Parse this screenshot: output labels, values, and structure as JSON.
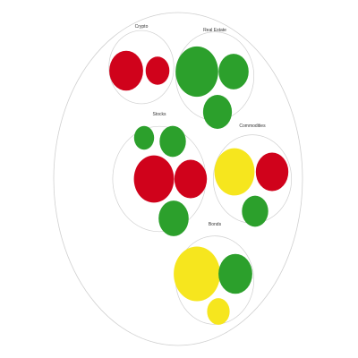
{
  "chart_data": {
    "type": "circle-packing",
    "title": "",
    "root": {
      "name": ""
    },
    "groups": [
      {
        "name": "Crypto",
        "items": [
          {
            "status": "red",
            "value": 1.35
          },
          {
            "status": "red",
            "value": 0.95
          }
        ]
      },
      {
        "name": "Real Estate",
        "items": [
          {
            "status": "green",
            "value": 1.7
          },
          {
            "status": "green",
            "value": 1.2
          },
          {
            "status": "green",
            "value": 1.15
          }
        ]
      },
      {
        "name": "Stocks",
        "items": [
          {
            "status": "green",
            "value": 0.8
          },
          {
            "status": "green",
            "value": 1.05
          },
          {
            "status": "red",
            "value": 1.6
          },
          {
            "status": "red",
            "value": 1.3
          },
          {
            "status": "green",
            "value": 1.2
          }
        ]
      },
      {
        "name": "Commodities",
        "items": [
          {
            "status": "yellow",
            "value": 1.6
          },
          {
            "status": "red",
            "value": 1.3
          },
          {
            "status": "green",
            "value": 1.05
          }
        ]
      },
      {
        "name": "Bonds",
        "items": [
          {
            "status": "yellow",
            "value": 1.85
          },
          {
            "status": "green",
            "value": 1.35
          },
          {
            "status": "yellow",
            "value": 0.9
          }
        ]
      }
    ],
    "colors": {
      "red": "#d0021b",
      "green": "#2ca02c",
      "yellow": "#f6e61e",
      "outline": "#d0d0d0"
    }
  }
}
